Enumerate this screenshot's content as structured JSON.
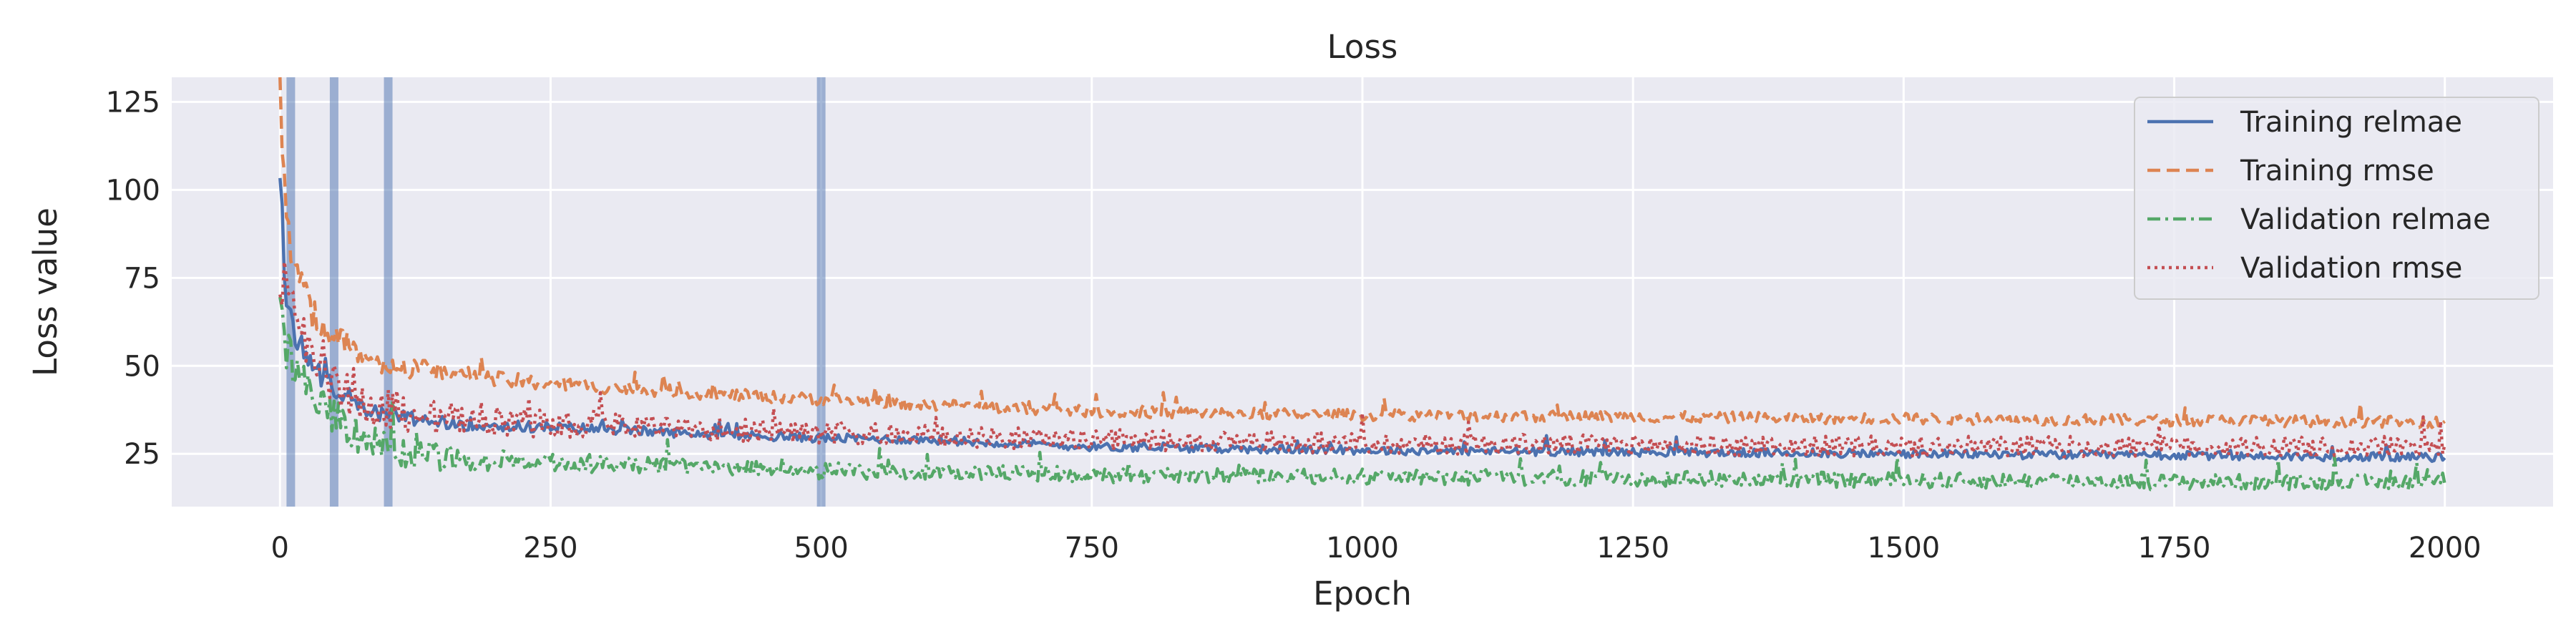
{
  "chart_data": {
    "type": "line",
    "title": "Loss",
    "xlabel": "Epoch",
    "ylabel": "Loss value",
    "xlim": [
      -100,
      2100
    ],
    "ylim": [
      10,
      132
    ],
    "xticks": [
      0,
      250,
      500,
      750,
      1000,
      1250,
      1500,
      1750,
      2000
    ],
    "yticks": [
      25,
      50,
      75,
      100,
      125
    ],
    "grid": true,
    "legend_position": "top-right",
    "background": "#eaeaf2",
    "vertical_markers": {
      "x": [
        10,
        50,
        100,
        500
      ],
      "color": "#4c72b0"
    },
    "series": [
      {
        "name": "Training relmae",
        "style": "solid",
        "color": "#4c72b0",
        "x": [
          0,
          5,
          10,
          20,
          30,
          50,
          75,
          100,
          150,
          200,
          300,
          400,
          500,
          600,
          750,
          1000,
          1250,
          1500,
          1750,
          2000
        ],
        "y": [
          100,
          72,
          63,
          55,
          50,
          44,
          39,
          36,
          34,
          33,
          32,
          30.5,
          29.5,
          29,
          27,
          26,
          25.5,
          25,
          24.5,
          24
        ],
        "noise": 1.2
      },
      {
        "name": "Training rmse",
        "style": "dashed",
        "color": "#dd8452",
        "x": [
          0,
          5,
          10,
          20,
          30,
          50,
          75,
          100,
          150,
          200,
          300,
          400,
          500,
          600,
          750,
          1000,
          1250,
          1500,
          1750,
          2000
        ],
        "y": [
          127,
          95,
          82,
          72,
          65,
          58,
          54,
          50,
          48,
          46,
          44,
          42,
          40.5,
          39,
          37,
          36,
          35.5,
          35,
          34.5,
          34
        ],
        "noise": 1.6
      },
      {
        "name": "Validation relmae",
        "style": "dashdot",
        "color": "#55a868",
        "x": [
          0,
          5,
          10,
          20,
          30,
          50,
          75,
          100,
          150,
          200,
          300,
          400,
          500,
          600,
          750,
          1000,
          1250,
          1500,
          1750,
          2000
        ],
        "y": [
          62,
          55,
          50,
          44,
          40,
          35,
          30,
          26,
          24,
          23,
          22,
          21,
          20,
          20,
          19,
          18.5,
          18,
          17.5,
          17,
          17
        ],
        "noise": 2.2
      },
      {
        "name": "Validation rmse",
        "style": "dotted",
        "color": "#c44e52",
        "x": [
          0,
          5,
          10,
          20,
          30,
          50,
          75,
          100,
          150,
          200,
          300,
          400,
          500,
          600,
          750,
          1000,
          1250,
          1500,
          1750,
          2000
        ],
        "y": [
          80,
          70,
          63,
          56,
          52,
          46,
          41,
          38,
          35,
          34,
          33,
          32,
          31,
          30,
          29,
          28,
          27.5,
          27,
          27,
          27
        ],
        "noise": 3.0
      }
    ]
  }
}
